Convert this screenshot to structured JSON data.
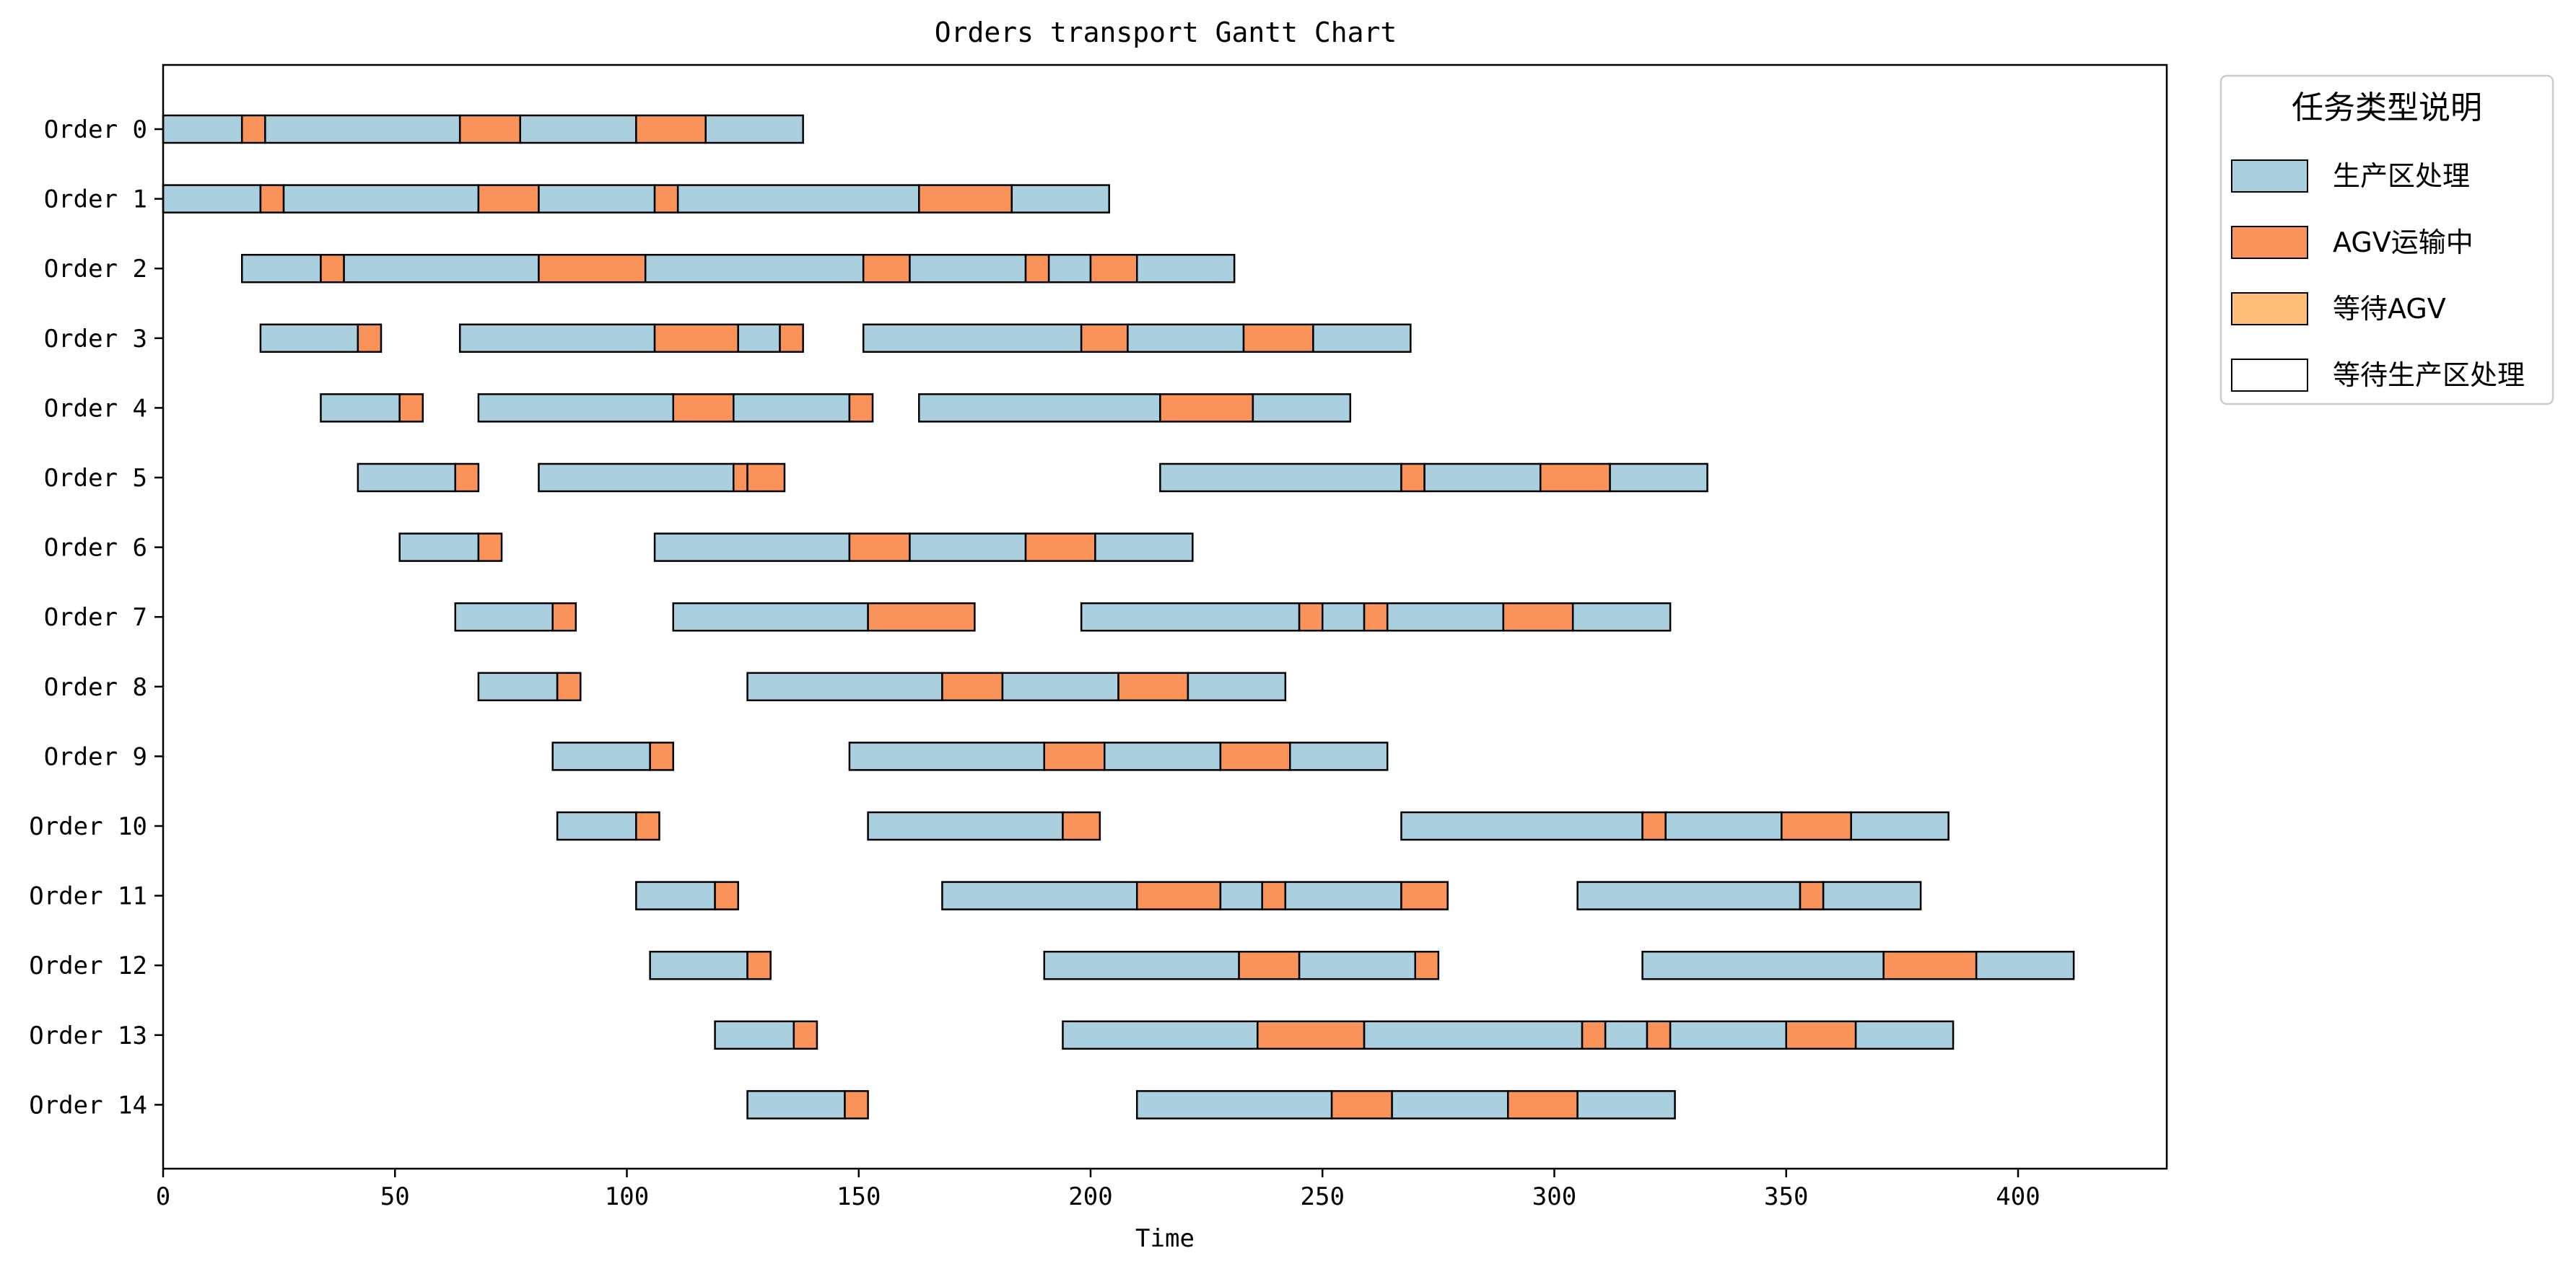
{
  "chart_data": {
    "type": "gantt",
    "title": "Orders transport Gantt Chart",
    "xlabel": "Time",
    "ylabel": "",
    "xlim": [
      0,
      432
    ],
    "xticks": [
      0,
      50,
      100,
      150,
      200,
      250,
      300,
      350,
      400
    ],
    "grid": false,
    "legend": {
      "title": "任务类型说明",
      "placement": "outside-top-right",
      "entries": [
        {
          "key": "production",
          "label": "生产区处理",
          "color": "#aad0e0"
        },
        {
          "key": "agv",
          "label": "AGV运输中",
          "color": "#f9935a"
        },
        {
          "key": "wait_agv",
          "label": "等待AGV",
          "color": "#ffbe78"
        },
        {
          "key": "wait_prod",
          "label": "等待生产区处理",
          "color": "#ffffff"
        }
      ]
    },
    "rows": [
      {
        "label": "Order 0",
        "segments": [
          [
            0,
            17,
            "production"
          ],
          [
            17,
            22,
            "agv"
          ],
          [
            22,
            64,
            "production"
          ],
          [
            64,
            77,
            "agv"
          ],
          [
            77,
            102,
            "production"
          ],
          [
            102,
            117,
            "agv"
          ],
          [
            117,
            138,
            "production"
          ]
        ]
      },
      {
        "label": "Order 1",
        "segments": [
          [
            0,
            21,
            "production"
          ],
          [
            21,
            26,
            "agv"
          ],
          [
            26,
            68,
            "production"
          ],
          [
            68,
            81,
            "agv"
          ],
          [
            81,
            106,
            "production"
          ],
          [
            106,
            111,
            "agv"
          ],
          [
            111,
            163,
            "production"
          ],
          [
            163,
            183,
            "agv"
          ],
          [
            183,
            204,
            "production"
          ]
        ]
      },
      {
        "label": "Order 2",
        "segments": [
          [
            17,
            34,
            "production"
          ],
          [
            34,
            39,
            "agv"
          ],
          [
            39,
            81,
            "production"
          ],
          [
            81,
            104,
            "agv"
          ],
          [
            104,
            151,
            "production"
          ],
          [
            151,
            161,
            "agv"
          ],
          [
            161,
            186,
            "production"
          ],
          [
            186,
            191,
            "agv"
          ],
          [
            191,
            200,
            "production"
          ],
          [
            200,
            210,
            "agv"
          ],
          [
            210,
            231,
            "production"
          ]
        ]
      },
      {
        "label": "Order 3",
        "segments": [
          [
            21,
            42,
            "production"
          ],
          [
            42,
            47,
            "agv"
          ],
          [
            64,
            106,
            "production"
          ],
          [
            106,
            124,
            "agv"
          ],
          [
            124,
            133,
            "production"
          ],
          [
            133,
            138,
            "agv"
          ],
          [
            151,
            198,
            "production"
          ],
          [
            198,
            208,
            "agv"
          ],
          [
            208,
            233,
            "production"
          ],
          [
            233,
            248,
            "agv"
          ],
          [
            248,
            269,
            "production"
          ]
        ]
      },
      {
        "label": "Order 4",
        "segments": [
          [
            34,
            51,
            "production"
          ],
          [
            51,
            56,
            "agv"
          ],
          [
            68,
            110,
            "production"
          ],
          [
            110,
            123,
            "agv"
          ],
          [
            123,
            148,
            "production"
          ],
          [
            148,
            153,
            "agv"
          ],
          [
            163,
            215,
            "production"
          ],
          [
            215,
            235,
            "agv"
          ],
          [
            235,
            256,
            "production"
          ]
        ]
      },
      {
        "label": "Order 5",
        "segments": [
          [
            42,
            63,
            "production"
          ],
          [
            63,
            68,
            "agv"
          ],
          [
            81,
            123,
            "production"
          ],
          [
            123,
            126,
            "agv"
          ],
          [
            126,
            134,
            "agv"
          ],
          [
            215,
            267,
            "production"
          ],
          [
            267,
            272,
            "agv"
          ],
          [
            272,
            297,
            "production"
          ],
          [
            297,
            312,
            "agv"
          ],
          [
            312,
            333,
            "production"
          ]
        ]
      },
      {
        "label": "Order 6",
        "segments": [
          [
            51,
            68,
            "production"
          ],
          [
            68,
            73,
            "agv"
          ],
          [
            106,
            148,
            "production"
          ],
          [
            148,
            161,
            "agv"
          ],
          [
            161,
            186,
            "production"
          ],
          [
            186,
            201,
            "agv"
          ],
          [
            201,
            222,
            "production"
          ]
        ]
      },
      {
        "label": "Order 7",
        "segments": [
          [
            63,
            84,
            "production"
          ],
          [
            84,
            89,
            "agv"
          ],
          [
            110,
            152,
            "production"
          ],
          [
            152,
            175,
            "agv"
          ],
          [
            198,
            245,
            "production"
          ],
          [
            245,
            250,
            "agv"
          ],
          [
            250,
            259,
            "production"
          ],
          [
            259,
            264,
            "agv"
          ],
          [
            264,
            289,
            "production"
          ],
          [
            289,
            304,
            "agv"
          ],
          [
            304,
            325,
            "production"
          ]
        ]
      },
      {
        "label": "Order 8",
        "segments": [
          [
            68,
            85,
            "production"
          ],
          [
            85,
            90,
            "agv"
          ],
          [
            126,
            168,
            "production"
          ],
          [
            168,
            181,
            "agv"
          ],
          [
            181,
            206,
            "production"
          ],
          [
            206,
            221,
            "agv"
          ],
          [
            221,
            242,
            "production"
          ]
        ]
      },
      {
        "label": "Order 9",
        "segments": [
          [
            84,
            105,
            "production"
          ],
          [
            105,
            110,
            "agv"
          ],
          [
            148,
            190,
            "production"
          ],
          [
            190,
            203,
            "agv"
          ],
          [
            203,
            228,
            "production"
          ],
          [
            228,
            243,
            "agv"
          ],
          [
            243,
            264,
            "production"
          ]
        ]
      },
      {
        "label": "Order 10",
        "segments": [
          [
            85,
            102,
            "production"
          ],
          [
            102,
            107,
            "agv"
          ],
          [
            152,
            194,
            "production"
          ],
          [
            194,
            202,
            "agv"
          ],
          [
            267,
            319,
            "production"
          ],
          [
            319,
            324,
            "agv"
          ],
          [
            324,
            349,
            "production"
          ],
          [
            349,
            364,
            "agv"
          ],
          [
            364,
            385,
            "production"
          ]
        ]
      },
      {
        "label": "Order 11",
        "segments": [
          [
            102,
            119,
            "production"
          ],
          [
            119,
            124,
            "agv"
          ],
          [
            168,
            210,
            "production"
          ],
          [
            210,
            228,
            "agv"
          ],
          [
            228,
            237,
            "production"
          ],
          [
            237,
            242,
            "agv"
          ],
          [
            242,
            267,
            "production"
          ],
          [
            267,
            277,
            "agv"
          ],
          [
            305,
            353,
            "production"
          ],
          [
            353,
            358,
            "agv"
          ],
          [
            358,
            379,
            "production"
          ]
        ]
      },
      {
        "label": "Order 12",
        "segments": [
          [
            105,
            126,
            "production"
          ],
          [
            126,
            131,
            "agv"
          ],
          [
            190,
            232,
            "production"
          ],
          [
            232,
            245,
            "agv"
          ],
          [
            245,
            270,
            "production"
          ],
          [
            270,
            275,
            "agv"
          ],
          [
            319,
            371,
            "production"
          ],
          [
            371,
            391,
            "agv"
          ],
          [
            391,
            412,
            "production"
          ]
        ]
      },
      {
        "label": "Order 13",
        "segments": [
          [
            119,
            136,
            "production"
          ],
          [
            136,
            141,
            "agv"
          ],
          [
            194,
            236,
            "production"
          ],
          [
            236,
            259,
            "agv"
          ],
          [
            259,
            306,
            "production"
          ],
          [
            306,
            311,
            "agv"
          ],
          [
            311,
            320,
            "production"
          ],
          [
            320,
            325,
            "agv"
          ],
          [
            325,
            350,
            "production"
          ],
          [
            350,
            365,
            "agv"
          ],
          [
            365,
            386,
            "production"
          ]
        ]
      },
      {
        "label": "Order 14",
        "segments": [
          [
            126,
            147,
            "production"
          ],
          [
            147,
            152,
            "agv"
          ],
          [
            210,
            252,
            "production"
          ],
          [
            252,
            265,
            "agv"
          ],
          [
            265,
            290,
            "production"
          ],
          [
            290,
            305,
            "agv"
          ],
          [
            305,
            326,
            "production"
          ]
        ]
      }
    ]
  }
}
